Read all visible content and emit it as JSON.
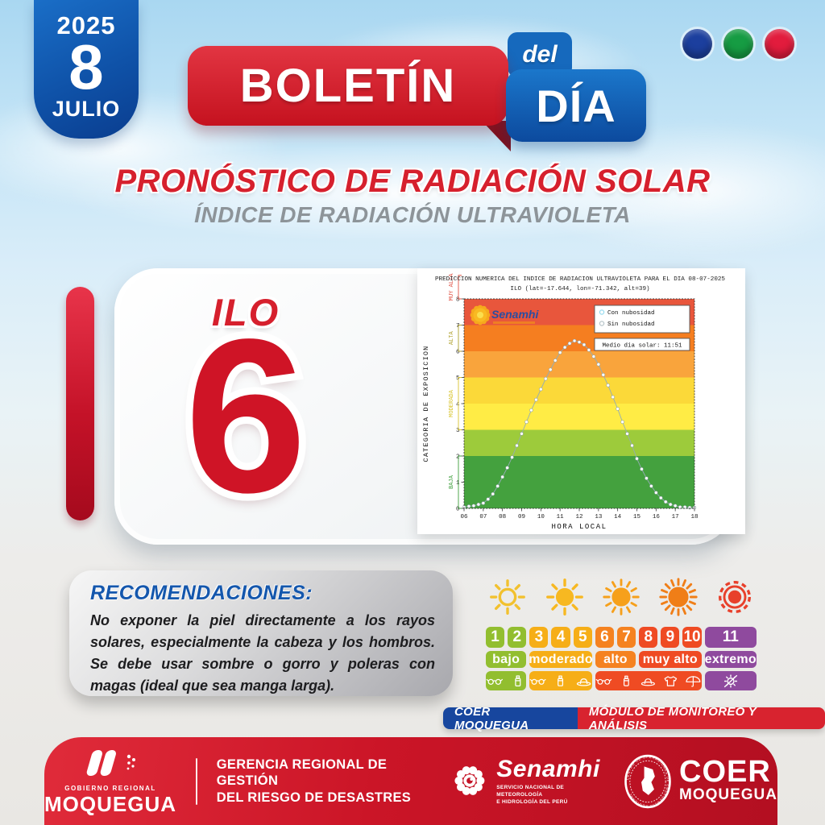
{
  "date_badge": {
    "year": "2025",
    "day": "8",
    "month": "JULIO"
  },
  "window_dots": [
    {
      "name": "blue-dot",
      "color": "#1C3F9E"
    },
    {
      "name": "green-dot",
      "color": "#169C43"
    },
    {
      "name": "red-dot",
      "color": "#E21C3D"
    }
  ],
  "logo": {
    "boletin": "BOLETÍN",
    "del": "del",
    "dia": "DÍA"
  },
  "heading": {
    "title": "PRONÓSTICO DE RADIACIÓN SOLAR",
    "subtitle": "ÍNDICE DE RADIACIÓN ULTRAVIOLETA"
  },
  "station": {
    "name": "ILO",
    "uv_value": "6"
  },
  "chart_data": {
    "type": "line",
    "title": "PREDICCION NUMERICA DEL INDICE DE RADIACION ULTRAVIOLETA PARA EL DIA 08-07-2025",
    "subtitle": "ILO (lat=-17.644, lon=-71.342, alt=39)",
    "xlabel": "HORA LOCAL",
    "ylabel": "CATEGORIA DE EXPOSICION",
    "xlim": [
      6,
      18
    ],
    "ylim": [
      0,
      8
    ],
    "x_ticks": [
      "06",
      "07",
      "08",
      "09",
      "10",
      "11",
      "12",
      "13",
      "14",
      "15",
      "16",
      "17",
      "18"
    ],
    "y_ticks": [
      0,
      1,
      2,
      3,
      4,
      5,
      6,
      7,
      8
    ],
    "legend_position": "top-right",
    "legend": [
      {
        "label": "Con nubosidad",
        "marker_color": "#9ADCF0"
      },
      {
        "label": "Sin nubosidad",
        "marker_color": "#B9C6CB"
      }
    ],
    "annotation": "Medio dia solar: 11:51",
    "watermark": "Senamhi",
    "bands": [
      {
        "from": 0,
        "to": 2,
        "color": "#44A13E"
      },
      {
        "from": 2,
        "to": 3,
        "color": "#9DCB3B"
      },
      {
        "from": 3,
        "to": 4,
        "color": "#FFEC45"
      },
      {
        "from": 4,
        "to": 5,
        "color": "#FBD939"
      },
      {
        "from": 5,
        "to": 6,
        "color": "#F9A43C"
      },
      {
        "from": 6,
        "to": 7,
        "color": "#F57E20"
      },
      {
        "from": 7,
        "to": 8,
        "color": "#E8563C"
      }
    ],
    "category_labels": [
      {
        "text": "BAJA",
        "color": "#3E9E3C",
        "from": 0,
        "to": 2
      },
      {
        "text": "MODERADA",
        "color": "#D9C52F",
        "from": 3,
        "to": 5
      },
      {
        "text": "ALTA",
        "color": "#AFA02C",
        "from": 6,
        "to": 7
      },
      {
        "text": "MUY ALTA",
        "color": "#E05345",
        "from": 8,
        "to": 8.9
      }
    ],
    "x": [
      6,
      6.25,
      6.5,
      6.75,
      7,
      7.25,
      7.5,
      7.75,
      8,
      8.25,
      8.5,
      8.75,
      9,
      9.25,
      9.5,
      9.75,
      10,
      10.25,
      10.5,
      10.75,
      11,
      11.25,
      11.5,
      11.75,
      12,
      12.25,
      12.5,
      12.75,
      13,
      13.25,
      13.5,
      13.75,
      14,
      14.25,
      14.5,
      14.75,
      15,
      15.25,
      15.5,
      15.75,
      16,
      16.25,
      16.5,
      16.75,
      17,
      17.25,
      17.5,
      17.75,
      18
    ],
    "series": [
      {
        "name": "Con nubosidad",
        "values": [
          0.05,
          0.08,
          0.1,
          0.15,
          0.2,
          0.35,
          0.55,
          0.85,
          1.2,
          1.55,
          1.95,
          2.4,
          2.85,
          3.3,
          3.75,
          4.15,
          4.55,
          4.95,
          5.3,
          5.65,
          5.95,
          6.15,
          6.3,
          6.4,
          6.35,
          6.25,
          6.05,
          5.8,
          5.5,
          5.1,
          4.7,
          4.25,
          3.8,
          3.3,
          2.85,
          2.4,
          1.9,
          1.5,
          1.15,
          0.85,
          0.6,
          0.4,
          0.25,
          0.15,
          0.1,
          0.05,
          0.05,
          0.03,
          0.03
        ]
      },
      {
        "name": "Sin nubosidad",
        "values": [
          0.05,
          0.08,
          0.1,
          0.15,
          0.2,
          0.35,
          0.55,
          0.85,
          1.2,
          1.55,
          1.95,
          2.4,
          2.85,
          3.3,
          3.75,
          4.15,
          4.55,
          4.95,
          5.3,
          5.65,
          5.95,
          6.15,
          6.3,
          6.4,
          6.35,
          6.25,
          6.05,
          5.8,
          5.5,
          5.1,
          4.7,
          4.25,
          3.8,
          3.3,
          2.85,
          2.4,
          1.9,
          1.5,
          1.15,
          0.85,
          0.6,
          0.4,
          0.25,
          0.15,
          0.1,
          0.05,
          0.05,
          0.03,
          0.03
        ]
      }
    ]
  },
  "recommendations": {
    "title": "RECOMENDACIONES:",
    "body": "No exponer la piel directamente a los rayos solares, especialmente la cabeza y los hombros. Se debe usar sombre o gorro y poleras con magas (ideal que sea manga larga)."
  },
  "uv_scale": {
    "suns": [
      {
        "name": "sun-low-icon",
        "style": "outline",
        "color": "#F2C12E"
      },
      {
        "name": "sun-moderate-icon",
        "style": "filled",
        "color": "#F7B821"
      },
      {
        "name": "sun-high-icon",
        "style": "rays",
        "color": "#F6A01B"
      },
      {
        "name": "sun-veryhigh-icon",
        "style": "strong",
        "color": "#F07E17"
      },
      {
        "name": "sun-extreme-icon",
        "style": "extreme",
        "color": "#E8402B"
      }
    ],
    "groups": [
      {
        "label": "bajo",
        "color": "#92BE2F",
        "numbers": [
          "1",
          "2"
        ],
        "icons": [
          "sunglasses",
          "sunscreen"
        ]
      },
      {
        "label": "moderado",
        "color": "#F6AE17",
        "numbers": [
          "3",
          "4",
          "5"
        ],
        "icons": [
          "sunglasses",
          "sunscreen",
          "hat"
        ]
      },
      {
        "label": "alto",
        "color": "#F58220",
        "numbers": [
          "6",
          "7"
        ],
        "icons": []
      },
      {
        "label": "muy alto",
        "color": "#EF4B23",
        "numbers": [
          "8",
          "9",
          "10"
        ],
        "icons": [
          "sunglasses",
          "sunscreen",
          "hat",
          "shirt",
          "umbrella"
        ]
      },
      {
        "label": "extremo",
        "color": "#8F4A9E",
        "numbers": [
          "11"
        ],
        "icons": [
          "no-sun"
        ]
      }
    ],
    "shared_icon_bar_color": "#EF4B23"
  },
  "banner": {
    "left": "COER MOQUEGUA",
    "right": "MÓDULO DE MONITOREO Y ANÁLISIS",
    "left_color": "#17469E",
    "right_color": "#D8232F"
  },
  "footer": {
    "gobierno_small": "GOBIERNO REGIONAL",
    "gobierno_big": "MOQUEGUA",
    "gerencia_line1": "GERENCIA REGIONAL DE GESTIÓN",
    "gerencia_line2": "DEL RIESGO DE DESASTRES",
    "senamhi_name": "Senamhi",
    "senamhi_tagline1": "SERVICIO NACIONAL DE METEOROLOGÍA",
    "senamhi_tagline2": "E HIDROLOGÍA DEL PERÚ",
    "coer_emblem_text": "CENTRO DE OPERACIONES DE EMERGENCIA REGIONAL",
    "coer_name": "COER",
    "coer_region": "MOQUEGUA"
  }
}
